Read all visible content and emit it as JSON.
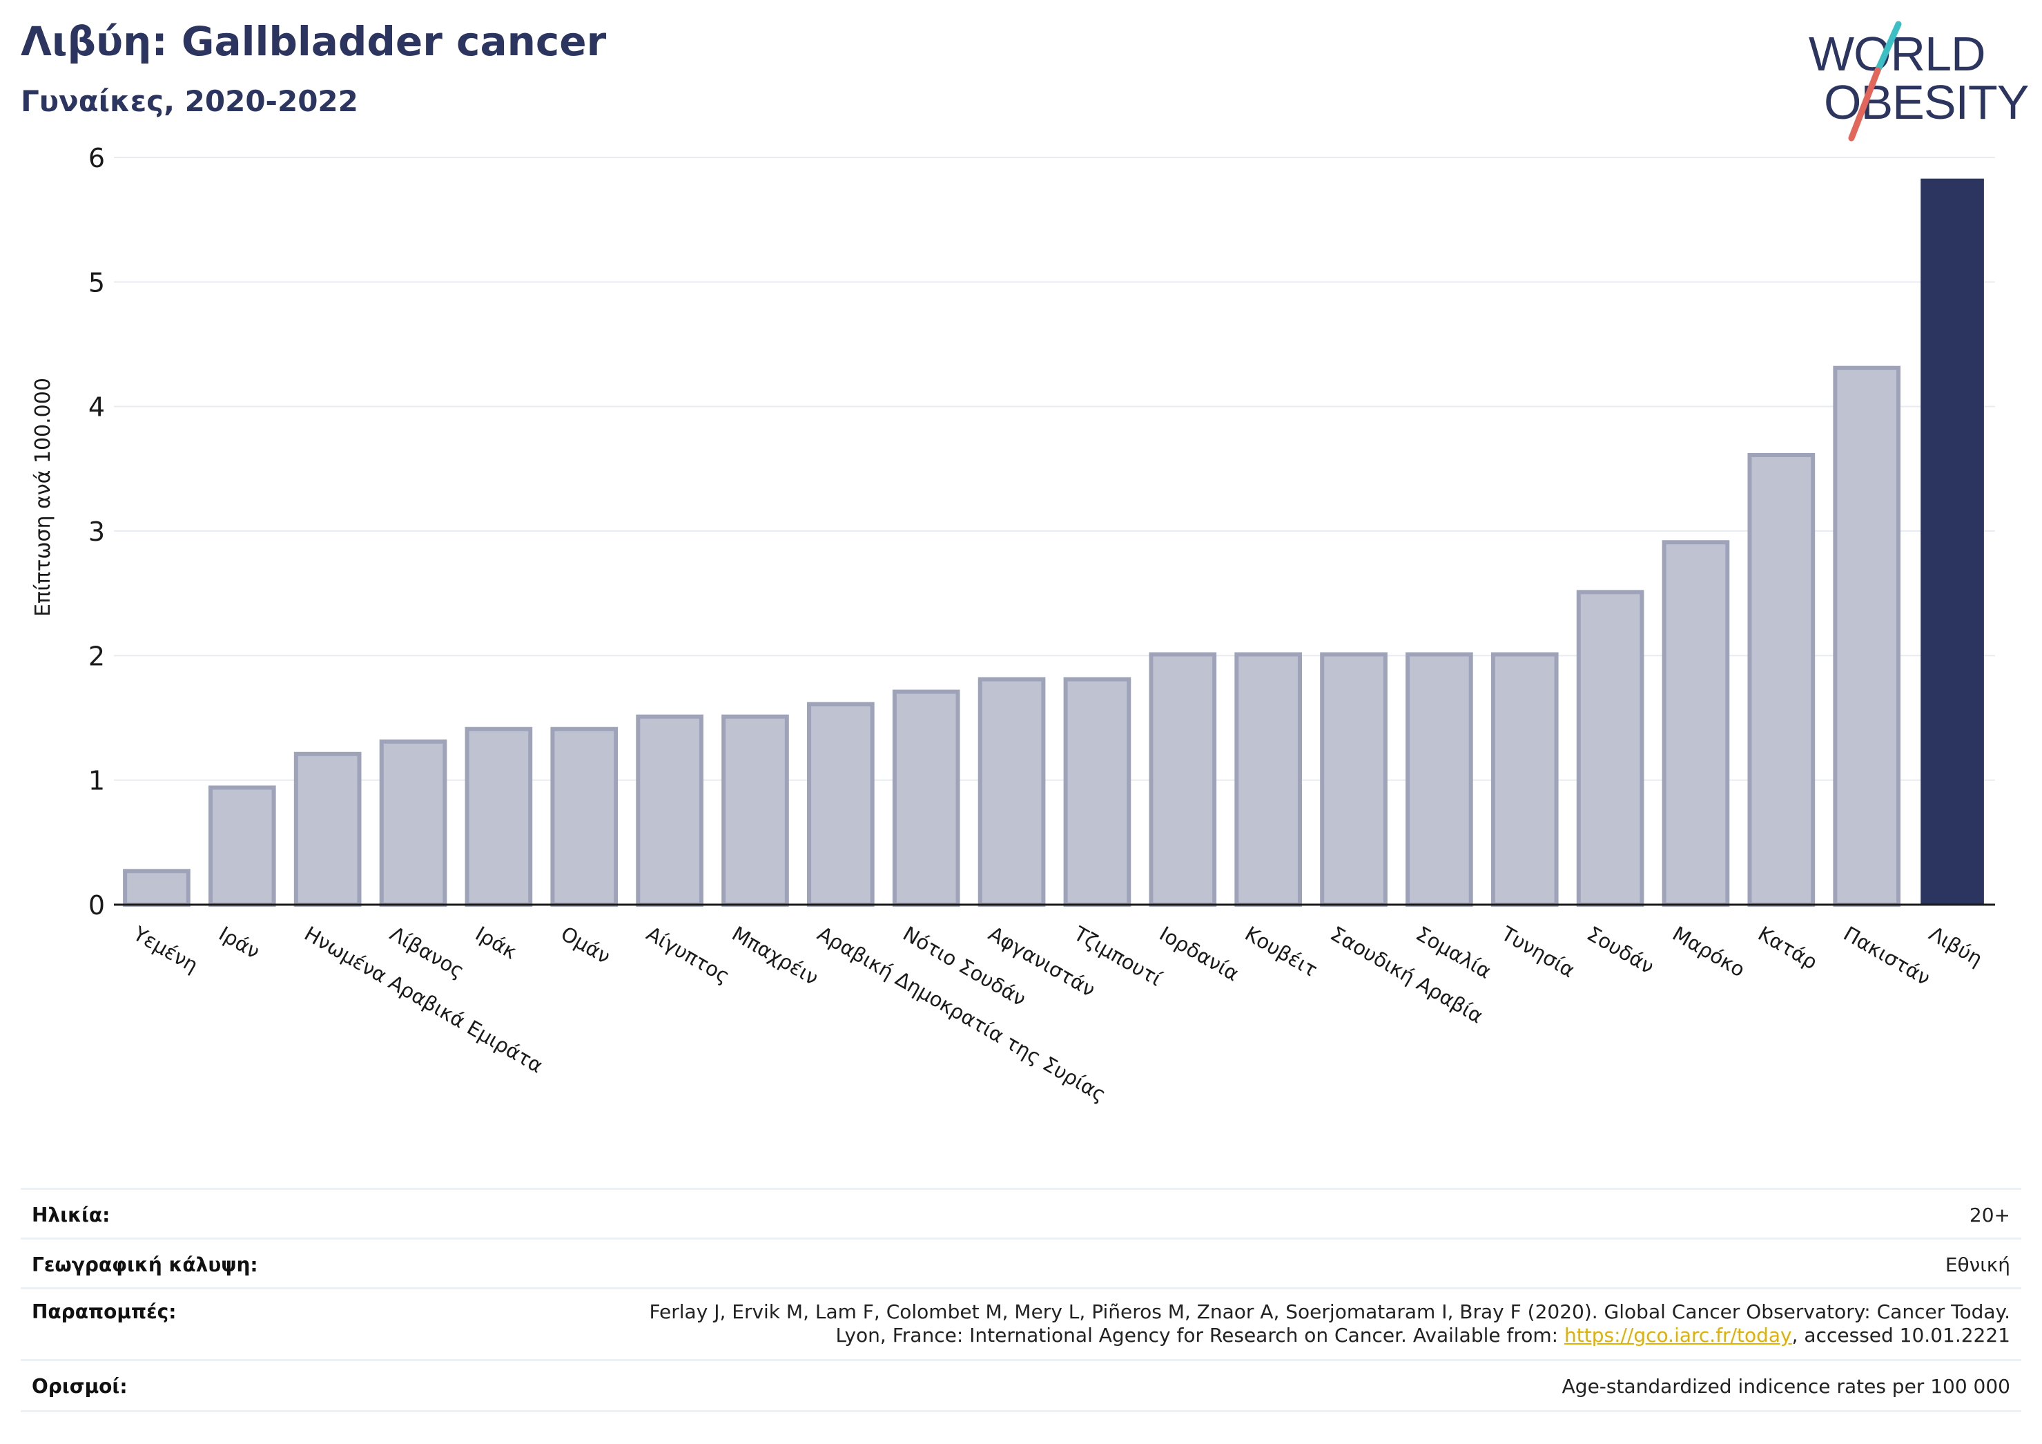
{
  "header": {
    "title": "Λιβύη: Gallbladder cancer",
    "subtitle": "Γυναίκες, 2020-2022"
  },
  "logo": {
    "line1": "WORLD",
    "line2": "OBESITY",
    "colors": {
      "text": "#2b355f",
      "slash_top": "#3bbfc4",
      "slash_bottom": "#e2665a"
    }
  },
  "colors": {
    "bar": "#bfc2d1",
    "bar_border": "#9ea3ba",
    "highlight": "#2b355f",
    "grid": "#e8ebf0",
    "axis": "#1a1a1a"
  },
  "chart_data": {
    "type": "bar",
    "title": "Λιβύη: Gallbladder cancer",
    "subtitle": "Γυναίκες, 2020-2022",
    "xlabel": "",
    "ylabel": "Επίπτωση ανά 100.000",
    "ylim": [
      0,
      6
    ],
    "yticks": [
      0,
      1,
      2,
      3,
      4,
      5,
      6
    ],
    "grid": true,
    "categories": [
      "Υεμένη",
      "Ιράν",
      "Ηνωμένα Αραβικά Εμιράτα",
      "Λίβανος",
      "Ιράκ",
      "Ομάν",
      "Αίγυπτος",
      "Μπαχρέιν",
      "Αραβική Δημοκρατία της Συρίας",
      "Νότιο Σουδάν",
      "Αφγανιστάν",
      "Τζιμπουτί",
      "Ιορδανία",
      "Κουβέιτ",
      "Σαουδική Αραβία",
      "Σομαλία",
      "Τυνησία",
      "Σουδάν",
      "Μαρόκο",
      "Κατάρ",
      "Πακιστάν",
      "Λιβύη"
    ],
    "values": [
      0.27,
      0.94,
      1.21,
      1.31,
      1.41,
      1.41,
      1.51,
      1.51,
      1.61,
      1.71,
      1.81,
      1.81,
      2.01,
      2.01,
      2.01,
      2.01,
      2.01,
      2.51,
      2.91,
      3.61,
      4.31,
      5.83
    ],
    "highlight": "Λιβύη"
  },
  "info": {
    "age_label": "Ηλικία:",
    "age_value": "20+",
    "coverage_label": "Γεωγραφική κάλυψη:",
    "coverage_value": "Εθνική",
    "refs_label": "Παραπομπές:",
    "refs_line1": "Ferlay J, Ervik M, Lam F, Colombet M, Mery L, Piñeros M, Znaor A, Soerjomataram I, Bray F (2020). Global Cancer Observatory: Cancer Today.",
    "refs_line2_pre": "Lyon, France: International Agency for Research on Cancer. Available from: ",
    "refs_link": "https://gco.iarc.fr/today",
    "refs_line2_post": ", accessed 10.01.2221",
    "defs_label": "Ορισμοί:",
    "defs_value": "Age-standardized indicence rates per 100 000"
  }
}
